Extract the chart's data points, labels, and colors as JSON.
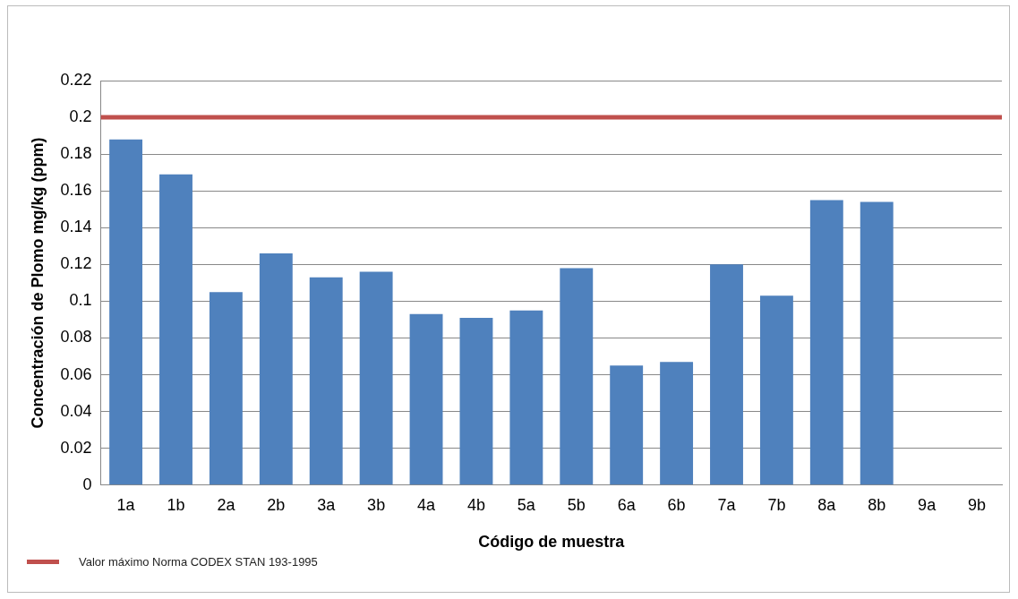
{
  "chart_data": {
    "type": "bar",
    "xlabel": "Código de muestra",
    "ylabel": "Concentración de Plomo mg/kg (ppm)",
    "categories": [
      "1a",
      "1b",
      "2a",
      "2b",
      "3a",
      "3b",
      "4a",
      "4b",
      "5a",
      "5b",
      "6a",
      "6b",
      "7a",
      "7b",
      "8a",
      "8b",
      "9a",
      "9b"
    ],
    "values": [
      0.188,
      0.169,
      0.105,
      0.126,
      0.113,
      0.116,
      0.093,
      0.091,
      0.095,
      0.118,
      0.065,
      0.067,
      0.12,
      0.103,
      0.155,
      0.154,
      null,
      null
    ],
    "color": "#4f81bd",
    "ylim": [
      0,
      0.22
    ],
    "yticks": [
      0,
      0.02,
      0.04,
      0.06,
      0.08,
      0.1,
      0.12,
      0.14,
      0.16,
      0.18,
      0.2,
      0.22
    ],
    "grid": "y",
    "ref_lines": [
      {
        "axis": "y",
        "value": 0.2,
        "label": "Valor máximo Norma CODEX STAN 193-1995",
        "color": "#c0504d"
      }
    ],
    "legend": "bottom left"
  }
}
